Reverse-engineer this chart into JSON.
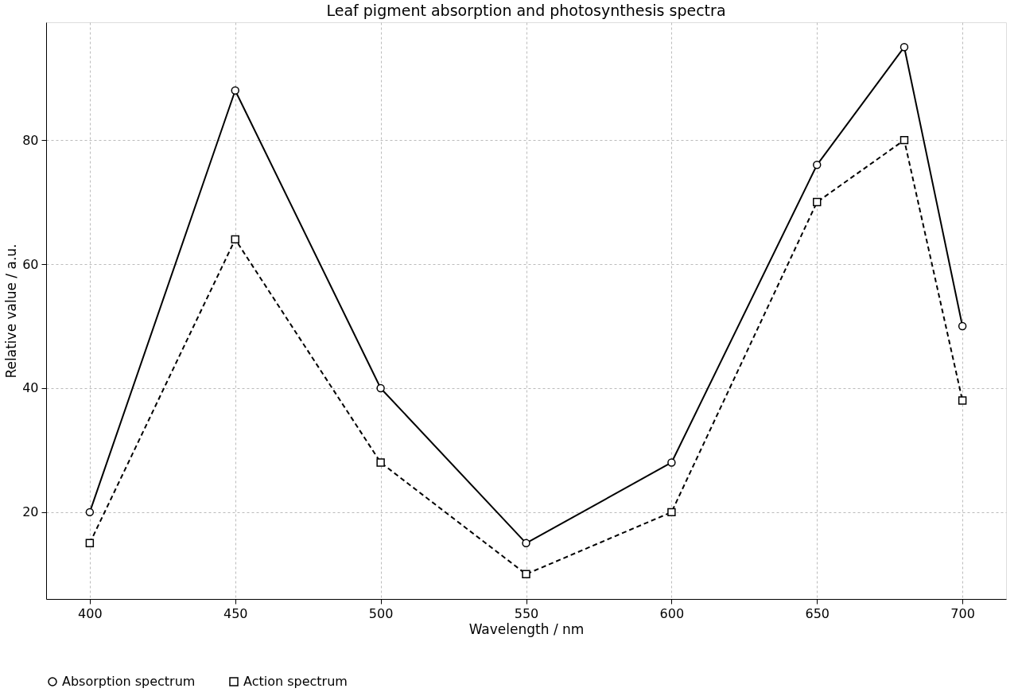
{
  "chart_data": {
    "type": "line",
    "title": "Leaf pigment absorption and photosynthesis spectra",
    "xlabel": "Wavelength / nm",
    "ylabel": "Relative value / a.u.",
    "x": [
      400,
      450,
      500,
      550,
      600,
      650,
      680,
      700
    ],
    "series": [
      {
        "name": "Absorption spectrum",
        "color": "#000000",
        "marker": "circle",
        "line_style": "solid",
        "values": [
          20,
          88,
          40,
          15,
          28,
          76,
          95,
          50
        ]
      },
      {
        "name": "Action spectrum",
        "color": "#000000",
        "marker": "square",
        "line_style": "dashed",
        "values": [
          15,
          64,
          28,
          10,
          20,
          70,
          80,
          38
        ]
      }
    ],
    "xlim": [
      385,
      715
    ],
    "ylim": [
      6,
      99
    ],
    "xticks": [
      400,
      450,
      500,
      550,
      600,
      650,
      700
    ],
    "yticks": [
      20,
      40,
      60,
      80
    ],
    "grid": true,
    "legend": "bottom"
  }
}
